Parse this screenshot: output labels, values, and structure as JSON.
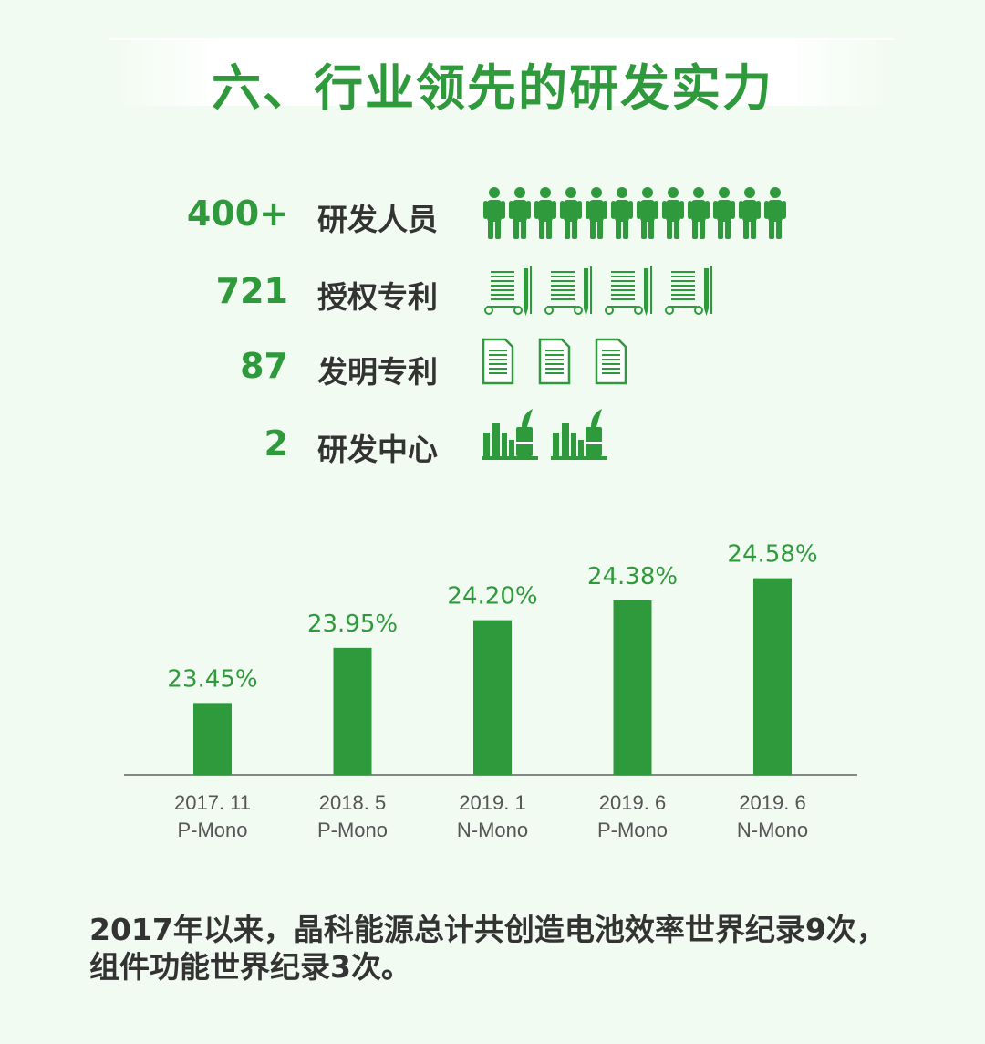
{
  "title": "六、行业领先的研发实力",
  "stats": [
    {
      "value": "400+",
      "label": "研发人员",
      "icon": "person-icon",
      "icon_count": 12
    },
    {
      "value": "721",
      "label": "授权专利",
      "icon": "patent-document-pen-icon",
      "icon_count": 4
    },
    {
      "value": "87",
      "label": "发明专利",
      "icon": "document-icon",
      "icon_count": 3
    },
    {
      "value": "2",
      "label": "研发中心",
      "icon": "factory-icon",
      "icon_count": 2
    }
  ],
  "chart_data": {
    "type": "bar",
    "categories": [
      [
        "2017. 11",
        "P-Mono"
      ],
      [
        "2018. 5",
        "P-Mono"
      ],
      [
        "2019. 1",
        "N-Mono"
      ],
      [
        "2019. 6",
        "P-Mono"
      ],
      [
        "2019. 6",
        "N-Mono"
      ]
    ],
    "values": [
      23.45,
      23.95,
      24.2,
      24.38,
      24.58
    ],
    "data_labels": [
      "23.45%",
      "23.95%",
      "24.20%",
      "24.38%",
      "24.58%"
    ],
    "bar_color": "#2e9a3c",
    "label_color": "#2e9a3c",
    "grid": false,
    "legend": "none"
  },
  "footer_text": "2017年以来，晶科能源总计共创造电池效率世界纪录9次，组件功能世界纪录3次。",
  "colors": {
    "accent": "#2e9a3c",
    "background": "#f1fbf1",
    "text": "#333333"
  }
}
